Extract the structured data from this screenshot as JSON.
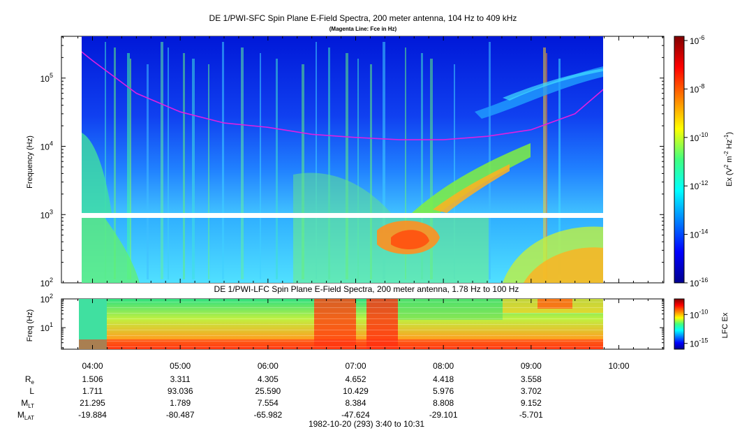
{
  "chart_data": [
    {
      "type": "heatmap",
      "title": "DE 1/PWI-SFC  Spin Plane E-Field Spectra, 200 meter antenna, 104 Hz to 409 kHz",
      "subtitle": "(Magenta Line: Fce in Hz)",
      "ylabel": "Frequency (Hz)",
      "yscale": "log",
      "ylim": [
        100,
        409000
      ],
      "yticks": [
        {
          "value": 100,
          "base": "10",
          "exp": "2"
        },
        {
          "value": 1000,
          "base": "10",
          "exp": "3"
        },
        {
          "value": 10000,
          "base": "10",
          "exp": "4"
        },
        {
          "value": 100000,
          "base": "10",
          "exp": "5"
        }
      ],
      "colorbar": {
        "label_prefix": "Ex (V",
        "label_sup1": "2",
        "label_mid": " m",
        "label_sup2": "-2",
        "label_mid2": " Hz",
        "label_sup3": "-1",
        "label_suffix": ")",
        "scale": "log",
        "range": [
          1e-16,
          1e-06
        ],
        "ticks": [
          {
            "value": 1e-06,
            "base": "10",
            "exp": "-6"
          },
          {
            "value": 1e-08,
            "base": "10",
            "exp": "-8"
          },
          {
            "value": 1e-10,
            "base": "10",
            "exp": "-10"
          },
          {
            "value": 1e-12,
            "base": "10",
            "exp": "-12"
          },
          {
            "value": 1e-14,
            "base": "10",
            "exp": "-14"
          },
          {
            "value": 1e-16,
            "base": "10",
            "exp": "-16"
          }
        ]
      },
      "fce_line": {
        "color": "#e020e0",
        "points": [
          {
            "t": "03:40",
            "f": 400000
          },
          {
            "t": "04:00",
            "f": 180000
          },
          {
            "t": "04:30",
            "f": 60000
          },
          {
            "t": "05:00",
            "f": 32000
          },
          {
            "t": "05:30",
            "f": 22000
          },
          {
            "t": "06:00",
            "f": 19000
          },
          {
            "t": "06:30",
            "f": 15000
          },
          {
            "t": "07:00",
            "f": 13500
          },
          {
            "t": "07:30",
            "f": 12500
          },
          {
            "t": "08:00",
            "f": 12500
          },
          {
            "t": "08:30",
            "f": 14000
          },
          {
            "t": "09:00",
            "f": 17500
          },
          {
            "t": "09:30",
            "f": 30000
          },
          {
            "t": "09:50",
            "f": 70000
          }
        ]
      },
      "data_gap_hz": [
        900,
        1050
      ]
    },
    {
      "type": "heatmap",
      "title": "DE 1/PWI-LFC  Spin Plane E-Field Spectra, 200 meter antenna, 1.78 Hz to 100 Hz",
      "ylabel": "Freq (Hz)",
      "yscale": "log",
      "ylim": [
        1.78,
        100
      ],
      "yticks": [
        {
          "value": 10,
          "base": "10",
          "exp": "1"
        },
        {
          "value": 100,
          "base": "10",
          "exp": "2"
        }
      ],
      "colorbar": {
        "label": "LFC Ex",
        "scale": "log",
        "ticks": [
          {
            "value": 1e-10,
            "base": "10",
            "exp": "-10"
          },
          {
            "value": 1e-15,
            "base": "10",
            "exp": "-15"
          }
        ]
      }
    }
  ],
  "x_axis": {
    "ticks": [
      "04:00",
      "05:00",
      "06:00",
      "07:00",
      "08:00",
      "09:00",
      "10:00"
    ],
    "range": [
      "03:40",
      "10:31"
    ],
    "footer": "1982-10-20 (293) 3:40 to 10:31"
  },
  "ephemeris": [
    {
      "label": "R",
      "sub": "e",
      "values": [
        "1.506",
        "3.311",
        "4.305",
        "4.652",
        "4.418",
        "3.558"
      ]
    },
    {
      "label": "L",
      "sub": "",
      "values": [
        "1.711",
        "93.036",
        "25.590",
        "10.429",
        "5.976",
        "3.702"
      ]
    },
    {
      "label": "M",
      "sub": "LT",
      "values": [
        "21.295",
        "1.789",
        "7.554",
        "8.384",
        "8.808",
        "9.152"
      ]
    },
    {
      "label": "M",
      "sub": "LAT",
      "values": [
        "-19.884",
        "-80.487",
        "-65.982",
        "-47.624",
        "-29.101",
        "-5.701"
      ]
    }
  ]
}
